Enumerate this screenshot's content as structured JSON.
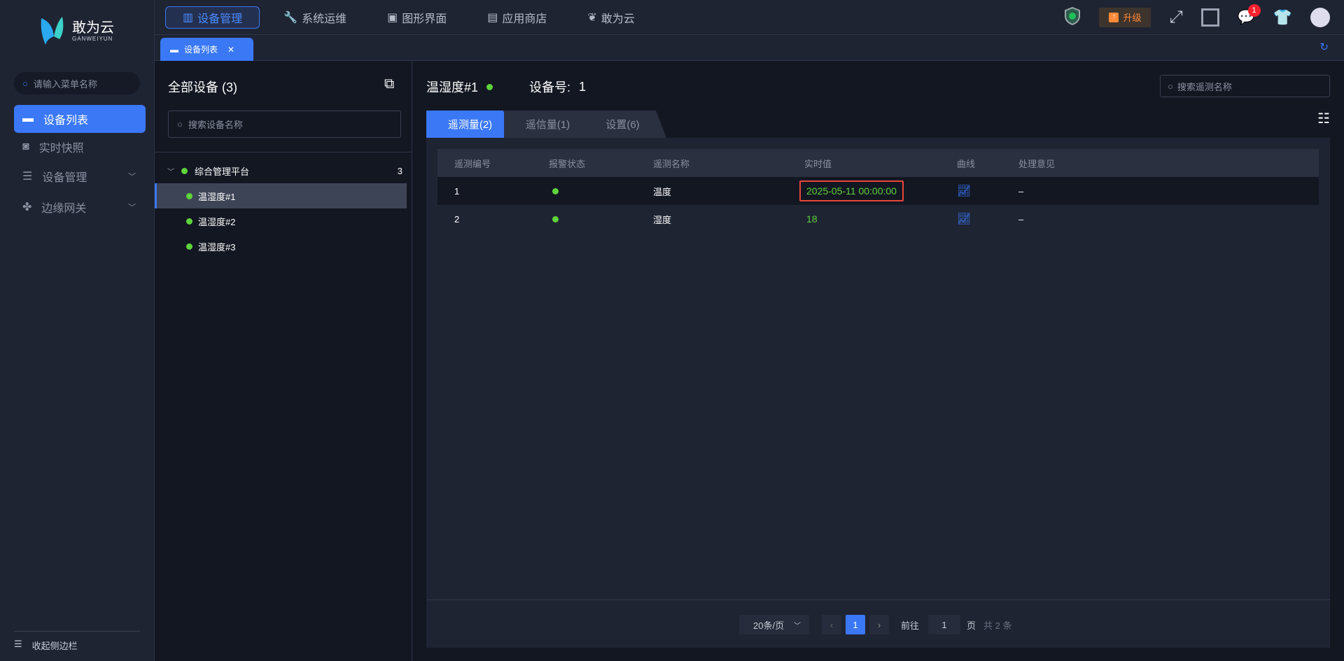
{
  "brand": {
    "name": "敢为云",
    "sub": "GANWEIYUN"
  },
  "sidebar": {
    "search_placeholder": "请输入菜单名称",
    "items": [
      {
        "label": "设备列表",
        "icon": "monitor-icon"
      },
      {
        "label": "实时快照",
        "icon": "camera-icon"
      },
      {
        "label": "设备管理",
        "icon": "server-icon"
      },
      {
        "label": "边缘网关",
        "icon": "gateway-icon"
      }
    ],
    "collapse": "收起侧边栏"
  },
  "topnav": [
    {
      "label": "设备管理"
    },
    {
      "label": "系统运维"
    },
    {
      "label": "图形界面"
    },
    {
      "label": "应用商店"
    },
    {
      "label": "敢为云"
    }
  ],
  "header": {
    "upgrade": "升级",
    "notifications": "1"
  },
  "tabs": [
    {
      "label": "设备列表"
    }
  ],
  "devices": {
    "title": "全部设备 (3)",
    "search_placeholder": "搜索设备名称",
    "group": {
      "name": "综合管理平台",
      "count": "3"
    },
    "items": [
      "温湿度#1",
      "温湿度#2",
      "温湿度#3"
    ]
  },
  "main": {
    "device_name": "温湿度#1",
    "device_no_label": "设备号:",
    "device_no": "1",
    "search_placeholder": "搜索遥测名称",
    "tabs": [
      "遥测量(2)",
      "遥信量(1)",
      "设置(6)"
    ],
    "columns": [
      "遥测编号",
      "报警状态",
      "遥测名称",
      "实时值",
      "曲线",
      "处理意见"
    ],
    "rows": [
      {
        "id": "1",
        "name": "温度",
        "value": "2025-05-11 00:00:00",
        "opinion": "–"
      },
      {
        "id": "2",
        "name": "湿度",
        "value": "18",
        "opinion": "–"
      }
    ],
    "pager": {
      "page_size": "20条/页",
      "page": "1",
      "goto": "前往",
      "goto_value": "1",
      "page_unit": "页",
      "total": "共 2 条"
    }
  },
  "colors": {
    "accent": "#3a78f6",
    "ok": "#5ed43b",
    "highlight": "#e8463c"
  }
}
